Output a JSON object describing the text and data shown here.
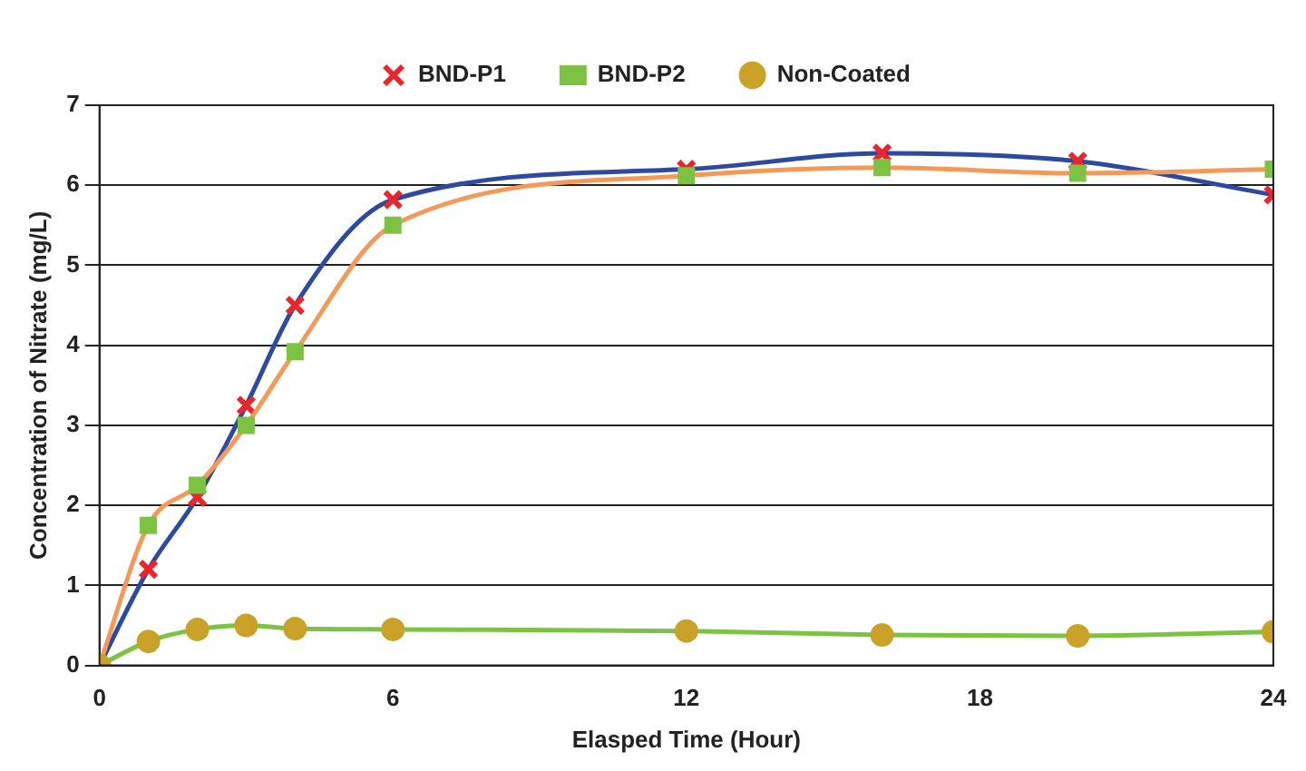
{
  "chart_data": {
    "type": "line",
    "xlabel": "Elasped Time (Hour)",
    "ylabel": "Concentration of Nitrate (mg/L)",
    "x": [
      0,
      1,
      2,
      3,
      4,
      6,
      12,
      16,
      20,
      24
    ],
    "series": [
      {
        "name": "BND-P1",
        "color": "#2e4a9e",
        "colors": [
          "#e8262b",
          "#e8262b",
          "#e8262b",
          "#e8262b",
          "#e8262b",
          "#e8262b",
          "#e8262b",
          "#e8262b",
          "#e8262b",
          "#e8262b"
        ],
        "marker": "cross",
        "values": [
          0,
          1.2,
          2.1,
          3.25,
          4.5,
          5.82,
          6.2,
          6.4,
          6.3,
          5.88
        ]
      },
      {
        "name": "BND-P2",
        "color": "#f39a5a",
        "colors": [
          "#7dc243",
          "#7dc243",
          "#7dc243",
          "#7dc243",
          "#7dc243",
          "#7dc243",
          "#7dc243",
          "#7dc243",
          "#7dc243",
          "#7dc243"
        ],
        "marker": "square",
        "values": [
          0,
          1.75,
          2.25,
          3.0,
          3.92,
          5.5,
          6.12,
          6.22,
          6.15,
          6.2
        ]
      },
      {
        "name": "Non-Coated",
        "color": "#7dc243",
        "colors": [
          "#c9a227",
          "#c9a227",
          "#c9a227",
          "#c9a227",
          "#c9a227",
          "#c9a227",
          "#c9a227",
          "#c9a227",
          "#c9a227",
          "#c9a227"
        ],
        "marker": "circle",
        "values": [
          0,
          0.3,
          0.45,
          0.5,
          0.46,
          0.45,
          0.43,
          0.38,
          0.37,
          0.42
        ]
      }
    ],
    "xlim": [
      0,
      24
    ],
    "xticks": [
      0,
      6,
      12,
      18,
      24
    ],
    "ylim": [
      0,
      7
    ],
    "yticks": [
      0,
      1,
      2,
      3,
      4,
      5,
      6,
      7
    ],
    "grid": "y",
    "legend": "top"
  }
}
